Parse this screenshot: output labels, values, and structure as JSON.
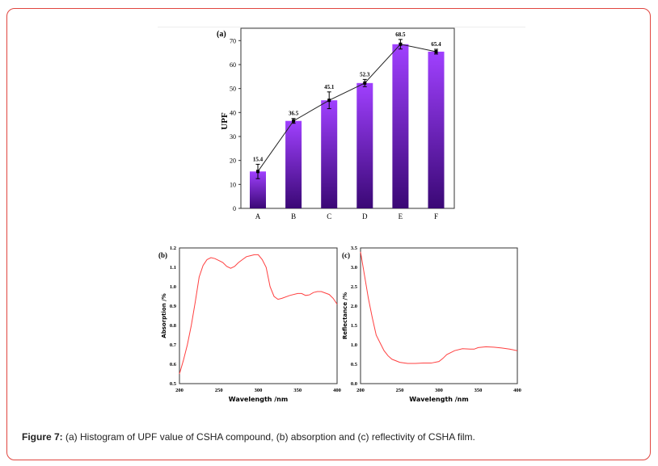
{
  "caption": {
    "label": "Figure 7:",
    "text": " (a) Histogram of UPF value of CSHA compound, (b) absorption and (c) reflectivity of CSHA film."
  },
  "chart_data": [
    {
      "type": "bar",
      "panel": "(a)",
      "categories": [
        "A",
        "B",
        "C",
        "D",
        "E",
        "F"
      ],
      "values": [
        15.4,
        36.5,
        45.1,
        52.3,
        68.5,
        65.4
      ],
      "errors": [
        3,
        1,
        3.5,
        1.5,
        2,
        1
      ],
      "data_labels": [
        "15.4",
        "36.5",
        "45.1",
        "52.3",
        "68.5",
        "65.4"
      ],
      "ylabel": "UPF",
      "xlabel": "",
      "ylim": [
        0,
        75
      ],
      "yticks": [
        0,
        10,
        20,
        30,
        40,
        50,
        60,
        70
      ],
      "bar_color": "#9b30ff",
      "bar_color_dark": "#3d0a7a",
      "line_overlay": true
    },
    {
      "type": "line",
      "panel": "(b)",
      "xlabel": "Wavelength /nm",
      "ylabel": "Absorption /%",
      "xlim": [
        200,
        400
      ],
      "ylim": [
        0.5,
        1.2
      ],
      "xticks": [
        200,
        250,
        300,
        350,
        400
      ],
      "yticks": [
        0.5,
        0.6,
        0.7,
        0.8,
        0.9,
        1.0,
        1.1,
        1.2
      ],
      "color": "#ff4040",
      "x": [
        200,
        205,
        210,
        215,
        220,
        225,
        230,
        235,
        240,
        245,
        250,
        255,
        260,
        265,
        270,
        275,
        280,
        285,
        290,
        295,
        300,
        305,
        310,
        315,
        320,
        325,
        330,
        340,
        350,
        355,
        360,
        365,
        370,
        375,
        380,
        390,
        395,
        400
      ],
      "y": [
        0.55,
        0.62,
        0.7,
        0.8,
        0.92,
        1.05,
        1.11,
        1.14,
        1.15,
        1.145,
        1.135,
        1.125,
        1.105,
        1.095,
        1.105,
        1.125,
        1.14,
        1.155,
        1.16,
        1.165,
        1.165,
        1.14,
        1.1,
        1.0,
        0.95,
        0.935,
        0.94,
        0.955,
        0.965,
        0.965,
        0.955,
        0.958,
        0.97,
        0.975,
        0.975,
        0.96,
        0.94,
        0.91
      ]
    },
    {
      "type": "line",
      "panel": "(c)",
      "xlabel": "Wavelength /nm",
      "ylabel": "Reflectance /%",
      "xlim": [
        200,
        400
      ],
      "ylim": [
        0,
        3.5
      ],
      "xticks": [
        200,
        250,
        300,
        350,
        400
      ],
      "yticks": [
        0.0,
        0.5,
        1.0,
        1.5,
        2.0,
        2.5,
        3.0,
        3.5
      ],
      "color": "#ff4040",
      "x": [
        200,
        205,
        210,
        215,
        220,
        225,
        230,
        235,
        240,
        250,
        260,
        270,
        280,
        290,
        300,
        305,
        310,
        320,
        330,
        340,
        345,
        350,
        360,
        370,
        380,
        390,
        400
      ],
      "y": [
        3.4,
        2.8,
        2.2,
        1.7,
        1.25,
        1.05,
        0.85,
        0.72,
        0.63,
        0.55,
        0.52,
        0.52,
        0.53,
        0.53,
        0.57,
        0.65,
        0.75,
        0.85,
        0.9,
        0.89,
        0.89,
        0.93,
        0.95,
        0.94,
        0.92,
        0.89,
        0.85
      ]
    }
  ]
}
